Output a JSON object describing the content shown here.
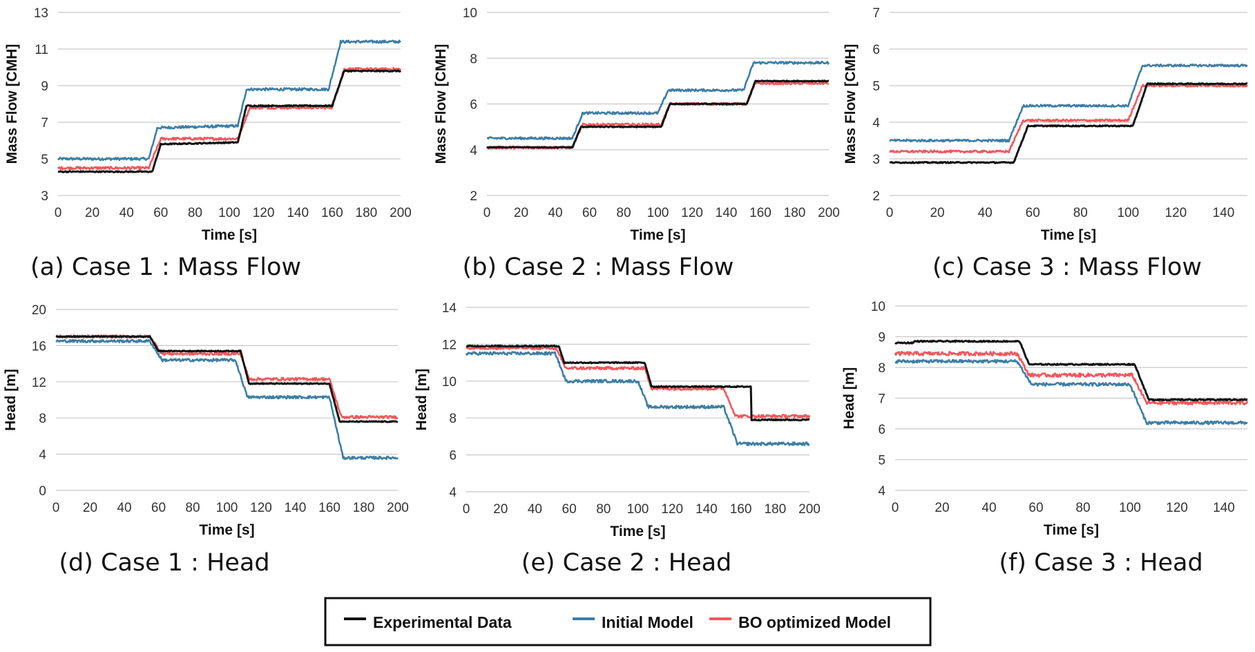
{
  "colors": {
    "experimental": "#111111",
    "initial": "#3d7ea6",
    "bo": "#f0585c",
    "grid": "#c8c8c8"
  },
  "legend": {
    "items": [
      {
        "key": "experimental",
        "label": "Experimental Data"
      },
      {
        "key": "initial",
        "label": "Initial Model"
      },
      {
        "key": "bo",
        "label": "BO optimized Model"
      }
    ]
  },
  "chart_data": [
    {
      "id": "a",
      "type": "line",
      "caption": "(a) Case 1 : Mass Flow",
      "xlabel": "Time [s]",
      "ylabel": "Mass Flow [CMH]",
      "xlim": [
        0,
        200
      ],
      "ylim": [
        3,
        13
      ],
      "xticks": [
        0,
        20,
        40,
        60,
        80,
        100,
        120,
        140,
        160,
        180,
        200
      ],
      "yticks": [
        3,
        5,
        7,
        9,
        11,
        13
      ],
      "series": [
        {
          "key": "experimental",
          "name": "Experimental Data",
          "noise": 0.03,
          "points": [
            [
              0,
              4.3
            ],
            [
              55,
              4.3
            ],
            [
              60,
              5.8
            ],
            [
              105,
              5.9
            ],
            [
              110,
              7.9
            ],
            [
              160,
              7.9
            ],
            [
              167,
              9.8
            ],
            [
              200,
              9.8
            ]
          ]
        },
        {
          "key": "initial",
          "name": "Initial Model",
          "noise": 0.07,
          "points": [
            [
              0,
              5.0
            ],
            [
              53,
              5.0
            ],
            [
              58,
              6.7
            ],
            [
              105,
              6.8
            ],
            [
              110,
              8.8
            ],
            [
              158,
              8.8
            ],
            [
              165,
              11.4
            ],
            [
              200,
              11.4
            ]
          ]
        },
        {
          "key": "bo",
          "name": "BO optimized Model",
          "noise": 0.07,
          "points": [
            [
              0,
              4.5
            ],
            [
              53,
              4.5
            ],
            [
              60,
              6.1
            ],
            [
              105,
              6.1
            ],
            [
              112,
              7.8
            ],
            [
              160,
              7.8
            ],
            [
              167,
              9.9
            ],
            [
              200,
              9.9
            ]
          ]
        }
      ]
    },
    {
      "id": "b",
      "type": "line",
      "caption": "(b) Case 2 : Mass Flow",
      "xlabel": "Time [s]",
      "ylabel": "Mass Flow [CMH]",
      "xlim": [
        0,
        200
      ],
      "ylim": [
        2,
        10
      ],
      "xticks": [
        0,
        20,
        40,
        60,
        80,
        100,
        120,
        140,
        160,
        180,
        200
      ],
      "yticks": [
        2,
        4,
        6,
        8,
        10
      ],
      "series": [
        {
          "key": "experimental",
          "name": "Experimental Data",
          "noise": 0.02,
          "points": [
            [
              0,
              4.1
            ],
            [
              50,
              4.1
            ],
            [
              55,
              5.0
            ],
            [
              102,
              5.0
            ],
            [
              107,
              6.0
            ],
            [
              152,
              6.0
            ],
            [
              157,
              7.0
            ],
            [
              200,
              7.0
            ]
          ]
        },
        {
          "key": "initial",
          "name": "Initial Model",
          "noise": 0.05,
          "points": [
            [
              0,
              4.5
            ],
            [
              50,
              4.5
            ],
            [
              56,
              5.6
            ],
            [
              100,
              5.6
            ],
            [
              106,
              6.6
            ],
            [
              150,
              6.6
            ],
            [
              156,
              7.8
            ],
            [
              200,
              7.8
            ]
          ]
        },
        {
          "key": "bo",
          "name": "BO optimized Model",
          "noise": 0.05,
          "points": [
            [
              0,
              4.1
            ],
            [
              50,
              4.1
            ],
            [
              56,
              5.1
            ],
            [
              102,
              5.1
            ],
            [
              107,
              6.0
            ],
            [
              152,
              6.0
            ],
            [
              157,
              6.9
            ],
            [
              200,
              6.9
            ]
          ]
        }
      ]
    },
    {
      "id": "c",
      "type": "line",
      "caption": "(c) Case 3 : Mass Flow",
      "xlabel": "Time [s]",
      "ylabel": "Mass Flow [CMH]",
      "xlim": [
        0,
        150
      ],
      "ylim": [
        2,
        7
      ],
      "xticks": [
        0,
        20,
        40,
        60,
        80,
        100,
        120,
        140
      ],
      "yticks": [
        2,
        3,
        4,
        5,
        6,
        7
      ],
      "series": [
        {
          "key": "experimental",
          "name": "Experimental Data",
          "noise": 0.015,
          "points": [
            [
              0,
              2.9
            ],
            [
              52,
              2.9
            ],
            [
              58,
              3.9
            ],
            [
              102,
              3.9
            ],
            [
              108,
              5.05
            ],
            [
              150,
              5.05
            ]
          ]
        },
        {
          "key": "initial",
          "name": "Initial Model",
          "noise": 0.03,
          "points": [
            [
              0,
              3.5
            ],
            [
              50,
              3.5
            ],
            [
              56,
              4.45
            ],
            [
              100,
              4.45
            ],
            [
              106,
              5.55
            ],
            [
              150,
              5.55
            ]
          ]
        },
        {
          "key": "bo",
          "name": "BO optimized Model",
          "noise": 0.03,
          "points": [
            [
              0,
              3.2
            ],
            [
              50,
              3.2
            ],
            [
              56,
              4.05
            ],
            [
              100,
              4.05
            ],
            [
              106,
              5.0
            ],
            [
              150,
              5.0
            ]
          ]
        }
      ]
    },
    {
      "id": "d",
      "type": "line",
      "caption": "(d) Case 1 : Head",
      "xlabel": "Time [s]",
      "ylabel": "Head [m]",
      "xlim": [
        0,
        200
      ],
      "ylim": [
        0,
        20
      ],
      "xticks": [
        0,
        20,
        40,
        60,
        80,
        100,
        120,
        140,
        160,
        180,
        200
      ],
      "yticks": [
        0,
        4,
        8,
        12,
        16,
        20
      ],
      "series": [
        {
          "key": "experimental",
          "name": "Experimental Data",
          "noise": 0.05,
          "points": [
            [
              0,
              17.0
            ],
            [
              55,
              17.0
            ],
            [
              60,
              15.4
            ],
            [
              108,
              15.4
            ],
            [
              113,
              11.8
            ],
            [
              160,
              11.8
            ],
            [
              166,
              7.6
            ],
            [
              200,
              7.6
            ]
          ]
        },
        {
          "key": "initial",
          "name": "Initial Model",
          "noise": 0.15,
          "points": [
            [
              0,
              16.5
            ],
            [
              55,
              16.5
            ],
            [
              62,
              14.4
            ],
            [
              105,
              14.4
            ],
            [
              112,
              10.3
            ],
            [
              160,
              10.3
            ],
            [
              168,
              3.6
            ],
            [
              200,
              3.6
            ]
          ]
        },
        {
          "key": "bo",
          "name": "BO optimized Model",
          "noise": 0.15,
          "points": [
            [
              0,
              17.0
            ],
            [
              55,
              17.0
            ],
            [
              62,
              15.1
            ],
            [
              108,
              15.1
            ],
            [
              113,
              12.3
            ],
            [
              160,
              12.3
            ],
            [
              167,
              8.1
            ],
            [
              200,
              8.1
            ]
          ]
        }
      ]
    },
    {
      "id": "e",
      "type": "line",
      "caption": "(e) Case 2 : Head",
      "xlabel": "Time [s]",
      "ylabel": "Head [m]",
      "xlim": [
        0,
        200
      ],
      "ylim": [
        4,
        14
      ],
      "xticks": [
        0,
        20,
        40,
        60,
        80,
        100,
        120,
        140,
        160,
        180,
        200
      ],
      "yticks": [
        4,
        6,
        8,
        10,
        12,
        14
      ],
      "series": [
        {
          "key": "experimental",
          "name": "Experimental Data",
          "noise": 0.03,
          "points": [
            [
              0,
              11.9
            ],
            [
              54,
              11.9
            ],
            [
              57,
              11.0
            ],
            [
              104,
              11.0
            ],
            [
              108,
              9.7
            ],
            [
              166,
              9.7
            ],
            [
              166,
              7.9
            ],
            [
              200,
              7.9
            ]
          ]
        },
        {
          "key": "initial",
          "name": "Initial Model",
          "noise": 0.08,
          "points": [
            [
              0,
              11.5
            ],
            [
              52,
              11.5
            ],
            [
              58,
              10.0
            ],
            [
              100,
              10.0
            ],
            [
              106,
              8.6
            ],
            [
              150,
              8.6
            ],
            [
              158,
              6.6
            ],
            [
              200,
              6.6
            ]
          ]
        },
        {
          "key": "bo",
          "name": "BO optimized Model",
          "noise": 0.08,
          "points": [
            [
              0,
              11.8
            ],
            [
              52,
              11.8
            ],
            [
              58,
              10.7
            ],
            [
              104,
              10.7
            ],
            [
              108,
              9.6
            ],
            [
              150,
              9.6
            ],
            [
              157,
              8.1
            ],
            [
              200,
              8.1
            ]
          ]
        }
      ]
    },
    {
      "id": "f",
      "type": "line",
      "caption": "(f) Case 3 : Head",
      "xlabel": "Time [s]",
      "ylabel": "Head [m]",
      "xlim": [
        0,
        150
      ],
      "ylim": [
        4,
        10
      ],
      "xticks": [
        0,
        20,
        40,
        60,
        80,
        100,
        120,
        140
      ],
      "yticks": [
        4,
        5,
        6,
        7,
        8,
        9,
        10
      ],
      "series": [
        {
          "key": "experimental",
          "name": "Experimental Data",
          "noise": 0.02,
          "points": [
            [
              0,
              8.8
            ],
            [
              8,
              8.8
            ],
            [
              8,
              8.85
            ],
            [
              53,
              8.85
            ],
            [
              57,
              8.1
            ],
            [
              102,
              8.1
            ],
            [
              108,
              6.95
            ],
            [
              150,
              6.95
            ]
          ]
        },
        {
          "key": "initial",
          "name": "Initial Model",
          "noise": 0.05,
          "points": [
            [
              0,
              8.2
            ],
            [
              52,
              8.2
            ],
            [
              58,
              7.45
            ],
            [
              100,
              7.45
            ],
            [
              107,
              6.2
            ],
            [
              150,
              6.2
            ]
          ]
        },
        {
          "key": "bo",
          "name": "BO optimized Model",
          "noise": 0.06,
          "points": [
            [
              0,
              8.45
            ],
            [
              52,
              8.45
            ],
            [
              57,
              7.75
            ],
            [
              101,
              7.75
            ],
            [
              107,
              6.85
            ],
            [
              150,
              6.85
            ]
          ]
        }
      ]
    }
  ]
}
